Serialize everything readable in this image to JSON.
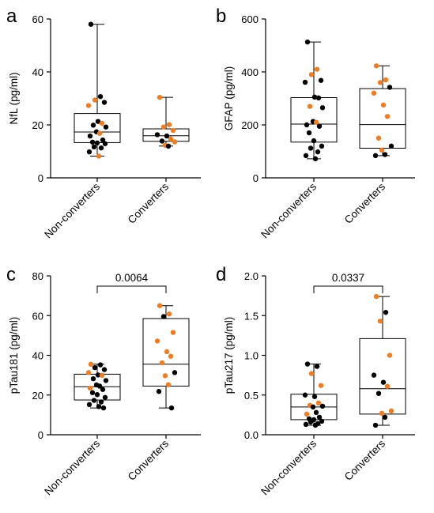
{
  "figure": {
    "colors": {
      "non_converter_point": "#000000",
      "converter_point": "#f07d22",
      "box": "#000000"
    }
  },
  "chart_data": [
    {
      "panel": "a",
      "type": "box",
      "ylabel": "NfL (pg/ml)",
      "ylim": [
        0,
        60
      ],
      "yticks": [
        0,
        20,
        40,
        60
      ],
      "categories": [
        "Non-converters",
        "Converters"
      ],
      "groups": [
        {
          "name": "Non-converters",
          "min": 8.2,
          "q1": 13.3,
          "median": 17.3,
          "q3": 24.3,
          "max": 58,
          "points": [
            {
              "y": 58,
              "c": "k"
            },
            {
              "y": 30.7,
              "c": "k"
            },
            {
              "y": 29.4,
              "c": "o"
            },
            {
              "y": 28.5,
              "c": "k"
            },
            {
              "y": 27.3,
              "c": "o"
            },
            {
              "y": 21.3,
              "c": "k"
            },
            {
              "y": 20.6,
              "c": "o"
            },
            {
              "y": 19.9,
              "c": "k"
            },
            {
              "y": 19.2,
              "c": "k"
            },
            {
              "y": 17.4,
              "c": "k"
            },
            {
              "y": 16.8,
              "c": "o"
            },
            {
              "y": 15.8,
              "c": "k"
            },
            {
              "y": 14.3,
              "c": "k"
            },
            {
              "y": 13.5,
              "c": "k"
            },
            {
              "y": 13.2,
              "c": "k"
            },
            {
              "y": 12.9,
              "c": "k"
            },
            {
              "y": 11.7,
              "c": "k"
            },
            {
              "y": 11.3,
              "c": "k"
            },
            {
              "y": 9.8,
              "c": "k"
            },
            {
              "y": 8.2,
              "c": "o"
            }
          ]
        },
        {
          "name": "Converters",
          "min": 12.0,
          "q1": 13.8,
          "median": 15.9,
          "q3": 18.5,
          "max": 30.4,
          "points": [
            {
              "y": 30.4,
              "c": "o"
            },
            {
              "y": 20.1,
              "c": "o"
            },
            {
              "y": 19.2,
              "c": "o"
            },
            {
              "y": 17.9,
              "c": "o"
            },
            {
              "y": 16.3,
              "c": "k"
            },
            {
              "y": 15.8,
              "c": "k"
            },
            {
              "y": 14.7,
              "c": "o"
            },
            {
              "y": 13.9,
              "c": "k"
            },
            {
              "y": 13.6,
              "c": "o"
            },
            {
              "y": 12.3,
              "c": "o"
            },
            {
              "y": 12.0,
              "c": "k"
            }
          ]
        }
      ]
    },
    {
      "panel": "b",
      "type": "box",
      "ylabel": "GFAP (pg/ml)",
      "ylim": [
        0,
        600
      ],
      "yticks": [
        0,
        200,
        400,
        600
      ],
      "categories": [
        "Non-converters",
        "Converters"
      ],
      "groups": [
        {
          "name": "Non-converters",
          "min": 72,
          "q1": 135,
          "median": 203,
          "q3": 303,
          "max": 513,
          "points": [
            {
              "y": 513,
              "c": "k"
            },
            {
              "y": 410,
              "c": "o"
            },
            {
              "y": 390,
              "c": "o"
            },
            {
              "y": 368,
              "c": "k"
            },
            {
              "y": 361,
              "c": "k"
            },
            {
              "y": 305,
              "c": "k"
            },
            {
              "y": 302,
              "c": "k"
            },
            {
              "y": 270,
              "c": "o"
            },
            {
              "y": 265,
              "c": "k"
            },
            {
              "y": 213,
              "c": "k"
            },
            {
              "y": 210,
              "c": "o"
            },
            {
              "y": 200,
              "c": "k"
            },
            {
              "y": 195,
              "c": "k"
            },
            {
              "y": 170,
              "c": "k"
            },
            {
              "y": 140,
              "c": "k"
            },
            {
              "y": 120,
              "c": "k"
            },
            {
              "y": 112,
              "c": "k"
            },
            {
              "y": 98,
              "c": "k"
            },
            {
              "y": 84,
              "c": "k"
            },
            {
              "y": 72,
              "c": "k"
            }
          ]
        },
        {
          "name": "Converters",
          "min": 84,
          "q1": 112,
          "median": 201,
          "q3": 337,
          "max": 423,
          "points": [
            {
              "y": 423,
              "c": "o"
            },
            {
              "y": 370,
              "c": "o"
            },
            {
              "y": 360,
              "c": "o"
            },
            {
              "y": 342,
              "c": "k"
            },
            {
              "y": 320,
              "c": "o"
            },
            {
              "y": 275,
              "c": "o"
            },
            {
              "y": 232,
              "c": "o"
            },
            {
              "y": 150,
              "c": "o"
            },
            {
              "y": 120,
              "c": "k"
            },
            {
              "y": 105,
              "c": "o"
            },
            {
              "y": 88,
              "c": "k"
            },
            {
              "y": 84,
              "c": "k"
            }
          ]
        }
      ]
    },
    {
      "panel": "c",
      "type": "box",
      "ylabel": "pTau181 (pg/ml)",
      "ylim": [
        0,
        80
      ],
      "yticks": [
        0,
        20,
        40,
        60,
        80
      ],
      "categories": [
        "Non-converters",
        "Converters"
      ],
      "significance": "0.0064",
      "groups": [
        {
          "name": "Non-converters",
          "min": 13.5,
          "q1": 17.5,
          "median": 24.2,
          "q3": 30.5,
          "max": 35.5,
          "points": [
            {
              "y": 35.5,
              "c": "o"
            },
            {
              "y": 35.2,
              "c": "k"
            },
            {
              "y": 33.8,
              "c": "k"
            },
            {
              "y": 32.8,
              "c": "k"
            },
            {
              "y": 31.3,
              "c": "o"
            },
            {
              "y": 30.1,
              "c": "k"
            },
            {
              "y": 29.9,
              "c": "o"
            },
            {
              "y": 28.2,
              "c": "k"
            },
            {
              "y": 27.3,
              "c": "k"
            },
            {
              "y": 25.1,
              "c": "k"
            },
            {
              "y": 24.5,
              "c": "k"
            },
            {
              "y": 23.5,
              "c": "o"
            },
            {
              "y": 22.8,
              "c": "k"
            },
            {
              "y": 21.2,
              "c": "k"
            },
            {
              "y": 20.2,
              "c": "k"
            },
            {
              "y": 18.8,
              "c": "k"
            },
            {
              "y": 17.3,
              "c": "k"
            },
            {
              "y": 16.5,
              "c": "k"
            },
            {
              "y": 15.2,
              "c": "k"
            },
            {
              "y": 14.2,
              "c": "k"
            },
            {
              "y": 13.5,
              "c": "k"
            }
          ]
        },
        {
          "name": "Converters",
          "min": 13.5,
          "q1": 24.5,
          "median": 35.5,
          "q3": 58.5,
          "max": 65,
          "points": [
            {
              "y": 65,
              "c": "o"
            },
            {
              "y": 60.8,
              "c": "o"
            },
            {
              "y": 59.5,
              "c": "k"
            },
            {
              "y": 51.5,
              "c": "o"
            },
            {
              "y": 47.2,
              "c": "o"
            },
            {
              "y": 41.8,
              "c": "o"
            },
            {
              "y": 39.5,
              "c": "o"
            },
            {
              "y": 36.2,
              "c": "o"
            },
            {
              "y": 31.3,
              "c": "k"
            },
            {
              "y": 29.7,
              "c": "o"
            },
            {
              "y": 25.2,
              "c": "o"
            },
            {
              "y": 21.8,
              "c": "k"
            },
            {
              "y": 13.5,
              "c": "k"
            }
          ]
        }
      ]
    },
    {
      "panel": "d",
      "type": "box",
      "ylabel": "pTau217 (pg/ml)",
      "ylim": [
        0,
        2.0
      ],
      "yticks": [
        0.0,
        0.5,
        1.0,
        1.5,
        2.0
      ],
      "categories": [
        "Non-converters",
        "Converters"
      ],
      "significance": "0.0337",
      "groups": [
        {
          "name": "Non-converters",
          "min": 0.12,
          "q1": 0.19,
          "median": 0.35,
          "q3": 0.51,
          "max": 0.89,
          "points": [
            {
              "y": 0.89,
              "c": "k"
            },
            {
              "y": 0.86,
              "c": "k"
            },
            {
              "y": 0.77,
              "c": "o"
            },
            {
              "y": 0.62,
              "c": "o"
            },
            {
              "y": 0.5,
              "c": "k"
            },
            {
              "y": 0.48,
              "c": "k"
            },
            {
              "y": 0.4,
              "c": "o"
            },
            {
              "y": 0.37,
              "c": "o"
            },
            {
              "y": 0.36,
              "c": "k"
            },
            {
              "y": 0.35,
              "c": "k"
            },
            {
              "y": 0.28,
              "c": "k"
            },
            {
              "y": 0.26,
              "c": "o"
            },
            {
              "y": 0.22,
              "c": "k"
            },
            {
              "y": 0.2,
              "c": "k"
            },
            {
              "y": 0.19,
              "c": "k"
            },
            {
              "y": 0.17,
              "c": "k"
            },
            {
              "y": 0.16,
              "c": "k"
            },
            {
              "y": 0.14,
              "c": "k"
            },
            {
              "y": 0.13,
              "c": "k"
            },
            {
              "y": 0.12,
              "c": "k"
            }
          ]
        },
        {
          "name": "Converters",
          "min": 0.12,
          "q1": 0.26,
          "median": 0.58,
          "q3": 1.21,
          "max": 1.74,
          "points": [
            {
              "y": 1.74,
              "c": "o"
            },
            {
              "y": 1.54,
              "c": "k"
            },
            {
              "y": 1.43,
              "c": "o"
            },
            {
              "y": 1.0,
              "c": "o"
            },
            {
              "y": 0.75,
              "c": "k"
            },
            {
              "y": 0.66,
              "c": "k"
            },
            {
              "y": 0.61,
              "c": "o"
            },
            {
              "y": 0.52,
              "c": "k"
            },
            {
              "y": 0.3,
              "c": "o"
            },
            {
              "y": 0.27,
              "c": "o"
            },
            {
              "y": 0.22,
              "c": "k"
            },
            {
              "y": 0.12,
              "c": "k"
            }
          ]
        }
      ]
    }
  ]
}
